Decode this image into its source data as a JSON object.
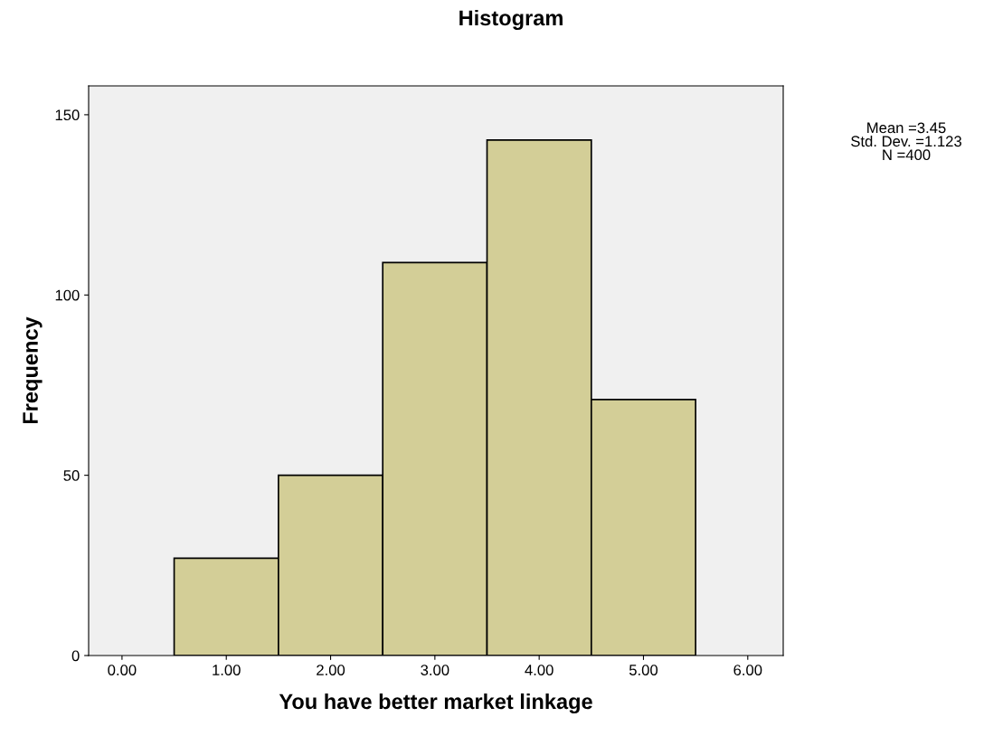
{
  "chart_data": {
    "type": "histogram",
    "title": "Histogram",
    "xlabel": "You have better market linkage",
    "ylabel": "Frequency",
    "bins": [
      0.5,
      1.5,
      2.5,
      3.5,
      4.5,
      5.5
    ],
    "values": [
      27,
      50,
      109,
      143,
      71
    ],
    "color": "#d3ce97",
    "xlim": [
      -0.32,
      6.34
    ],
    "xticks": [
      {
        "value": 0,
        "label": "0.00"
      },
      {
        "value": 1,
        "label": "1.00"
      },
      {
        "value": 2,
        "label": "2.00"
      },
      {
        "value": 3,
        "label": "3.00"
      },
      {
        "value": 4,
        "label": "4.00"
      },
      {
        "value": 5,
        "label": "5.00"
      },
      {
        "value": 6,
        "label": "6.00"
      }
    ],
    "ylim": [
      0,
      158
    ],
    "yticks": [
      0,
      50,
      100,
      150
    ],
    "grid": false,
    "annotations": [
      "Mean =3.45\nStd. Dev. =1.123\nN =400"
    ]
  }
}
